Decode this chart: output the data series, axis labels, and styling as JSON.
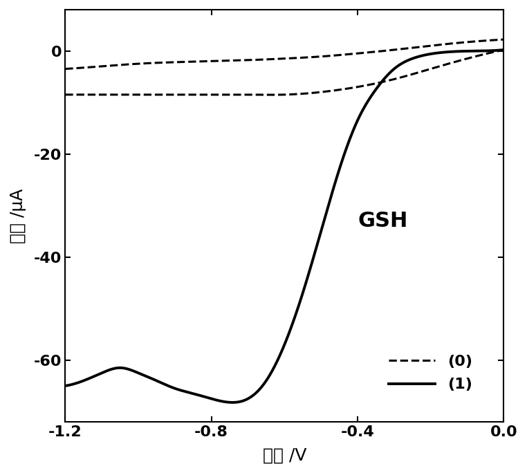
{
  "xlim": [
    -1.2,
    0.0
  ],
  "ylim": [
    -72,
    8
  ],
  "xlabel": "电位 /V",
  "ylabel": "电流 /μA",
  "gsh_label": "GSH",
  "legend_0": "(0)",
  "legend_1": "(1)",
  "xticks": [
    -1.2,
    -0.8,
    -0.4,
    0.0
  ],
  "yticks": [
    -60,
    -40,
    -20,
    0
  ],
  "background_color": "#ffffff",
  "line_color": "#000000",
  "linewidth_solid": 2.8,
  "linewidth_dashed": 2.2,
  "dash_upper_x": [
    -1.2,
    -1.1,
    -1.0,
    -0.9,
    -0.8,
    -0.7,
    -0.6,
    -0.5,
    -0.4,
    -0.3,
    -0.2,
    -0.1,
    0.0
  ],
  "dash_upper_y": [
    -3.5,
    -3.0,
    -2.5,
    -2.2,
    -2.0,
    -1.8,
    -1.5,
    -1.1,
    -0.5,
    0.2,
    1.0,
    1.7,
    2.2
  ],
  "dash_lower_x": [
    -1.2,
    -1.1,
    -1.0,
    -0.9,
    -0.8,
    -0.7,
    -0.6,
    -0.5,
    -0.4,
    -0.3,
    -0.2,
    -0.1,
    0.0
  ],
  "dash_lower_y": [
    -8.5,
    -8.5,
    -8.5,
    -8.5,
    -8.5,
    -8.5,
    -8.5,
    -8.0,
    -7.0,
    -5.5,
    -3.5,
    -1.5,
    0.2
  ],
  "solid_x": [
    -1.2,
    -1.15,
    -1.1,
    -1.05,
    -1.0,
    -0.95,
    -0.9,
    -0.85,
    -0.8,
    -0.75,
    -0.7,
    -0.65,
    -0.6,
    -0.55,
    -0.5,
    -0.45,
    -0.4,
    -0.35,
    -0.3,
    -0.25,
    -0.2,
    -0.15,
    -0.1,
    -0.05,
    0.0
  ],
  "solid_y": [
    -65.0,
    -64.0,
    -62.5,
    -61.5,
    -62.5,
    -64.0,
    -65.5,
    -66.5,
    -67.5,
    -68.2,
    -67.5,
    -64.0,
    -57.0,
    -47.0,
    -35.0,
    -23.0,
    -13.5,
    -7.5,
    -3.5,
    -1.5,
    -0.6,
    -0.2,
    -0.05,
    0.0,
    0.2
  ]
}
